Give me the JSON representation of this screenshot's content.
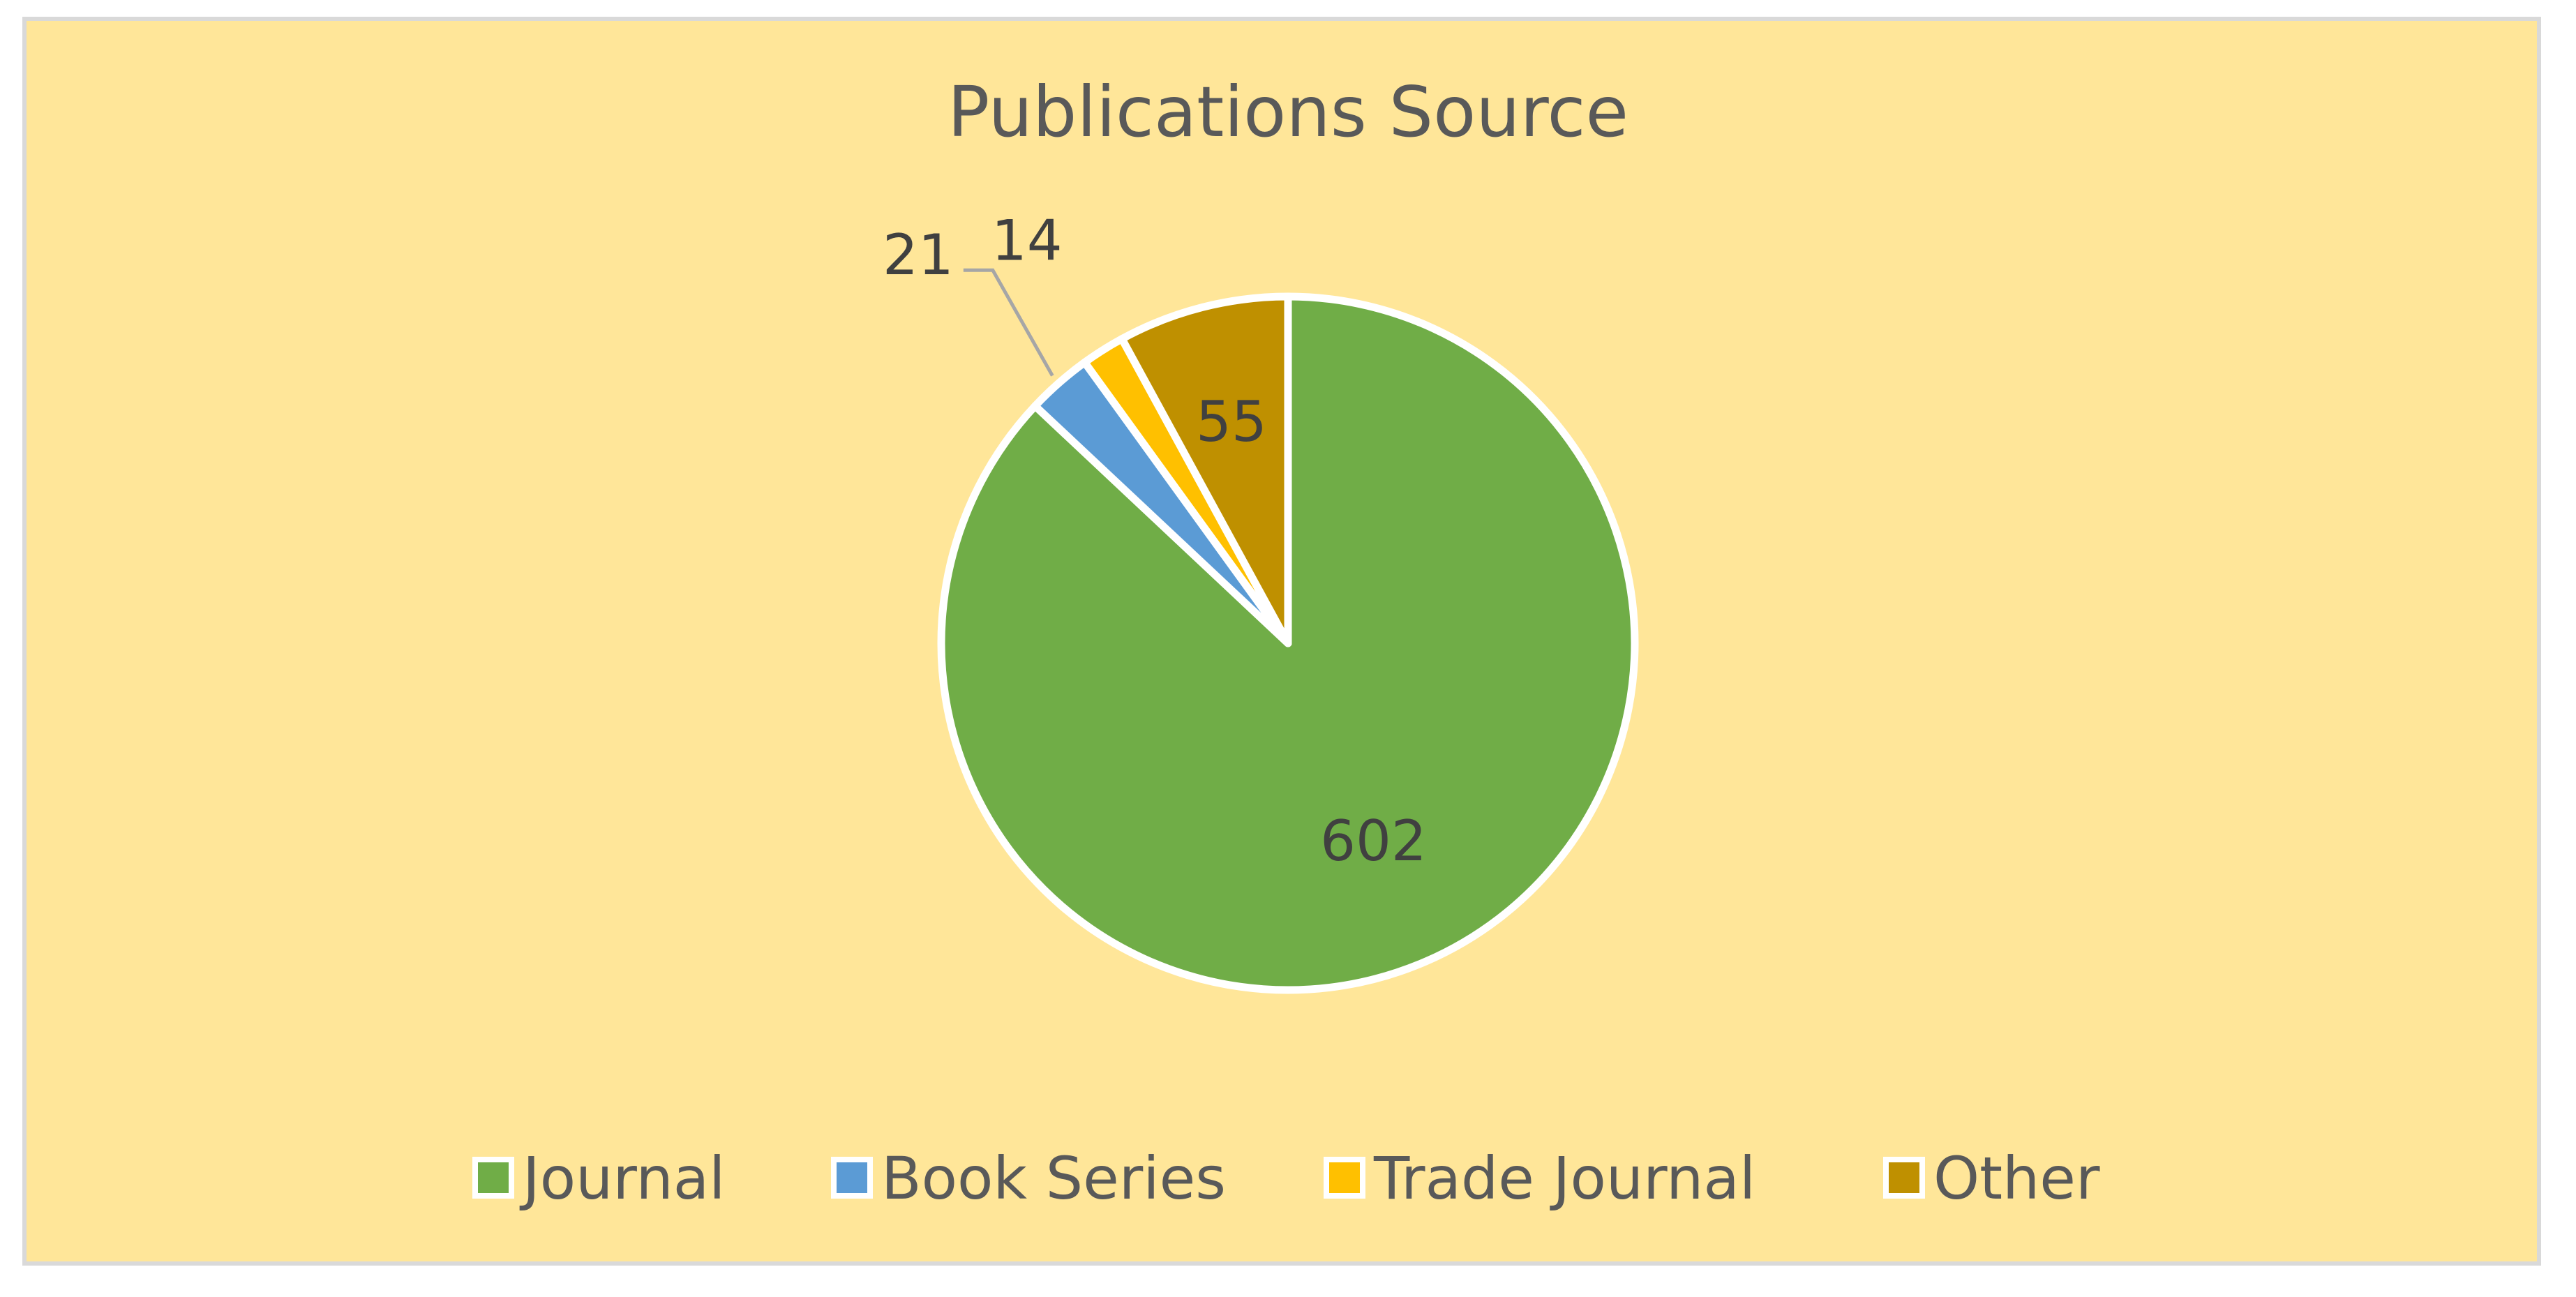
{
  "chart_data": {
    "type": "pie",
    "title": "Publications Source",
    "categories": [
      "Journal",
      "Book Series",
      "Trade Journal",
      "Other"
    ],
    "values": [
      602,
      21,
      14,
      55
    ],
    "data_labels": [
      "602",
      "21",
      "14",
      "55"
    ],
    "colors": [
      "#70AD47",
      "#5B9BD5",
      "#FFC000",
      "#BF9000"
    ],
    "start_angle_deg": 0,
    "direction": "clockwise",
    "legend_position": "bottom",
    "background": "#FFE699",
    "slice_border": "#FFFFFF"
  }
}
